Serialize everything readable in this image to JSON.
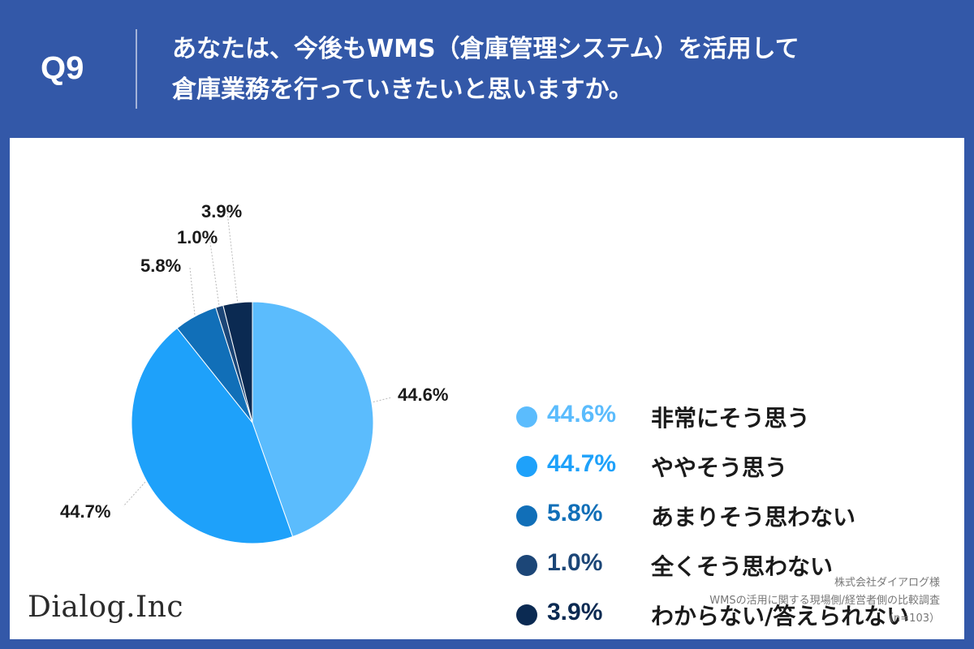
{
  "header": {
    "question_number": "Q9",
    "question_line1": "あなたは、今後もWMS（倉庫管理システム）を活用して",
    "question_line2": "倉庫業務を行っていきたいと思いますか。"
  },
  "chart_data": {
    "type": "pie",
    "slices": [
      {
        "label": "非常にそう思う",
        "value": 44.6,
        "value_text": "44.6%",
        "color": "#5bbcfd"
      },
      {
        "label": "ややそう思う",
        "value": 44.7,
        "value_text": "44.7%",
        "color": "#1ea1fa"
      },
      {
        "label": "あまりそう思わない",
        "value": 5.8,
        "value_text": "5.8%",
        "color": "#116fb8"
      },
      {
        "label": "全くそう思わない",
        "value": 1.0,
        "value_text": "1.0%",
        "color": "#1c4677"
      },
      {
        "label": "わからない/答えられない",
        "value": 3.9,
        "value_text": "3.9%",
        "color": "#0b2a52"
      }
    ],
    "start_angle_deg": 0,
    "direction": "clockwise",
    "legend_position": "right"
  },
  "footer": {
    "logo_text": "Dialog.Inc",
    "credit_line1": "株式会社ダイアログ様",
    "credit_line2": "WMSの活用に関する現場側/経営者側の比較調査",
    "credit_line3": "（n=103）"
  },
  "colors": {
    "header_background": "#3358a8",
    "panel_background": "#ffffff",
    "leader_line": "#bbbbbb"
  }
}
